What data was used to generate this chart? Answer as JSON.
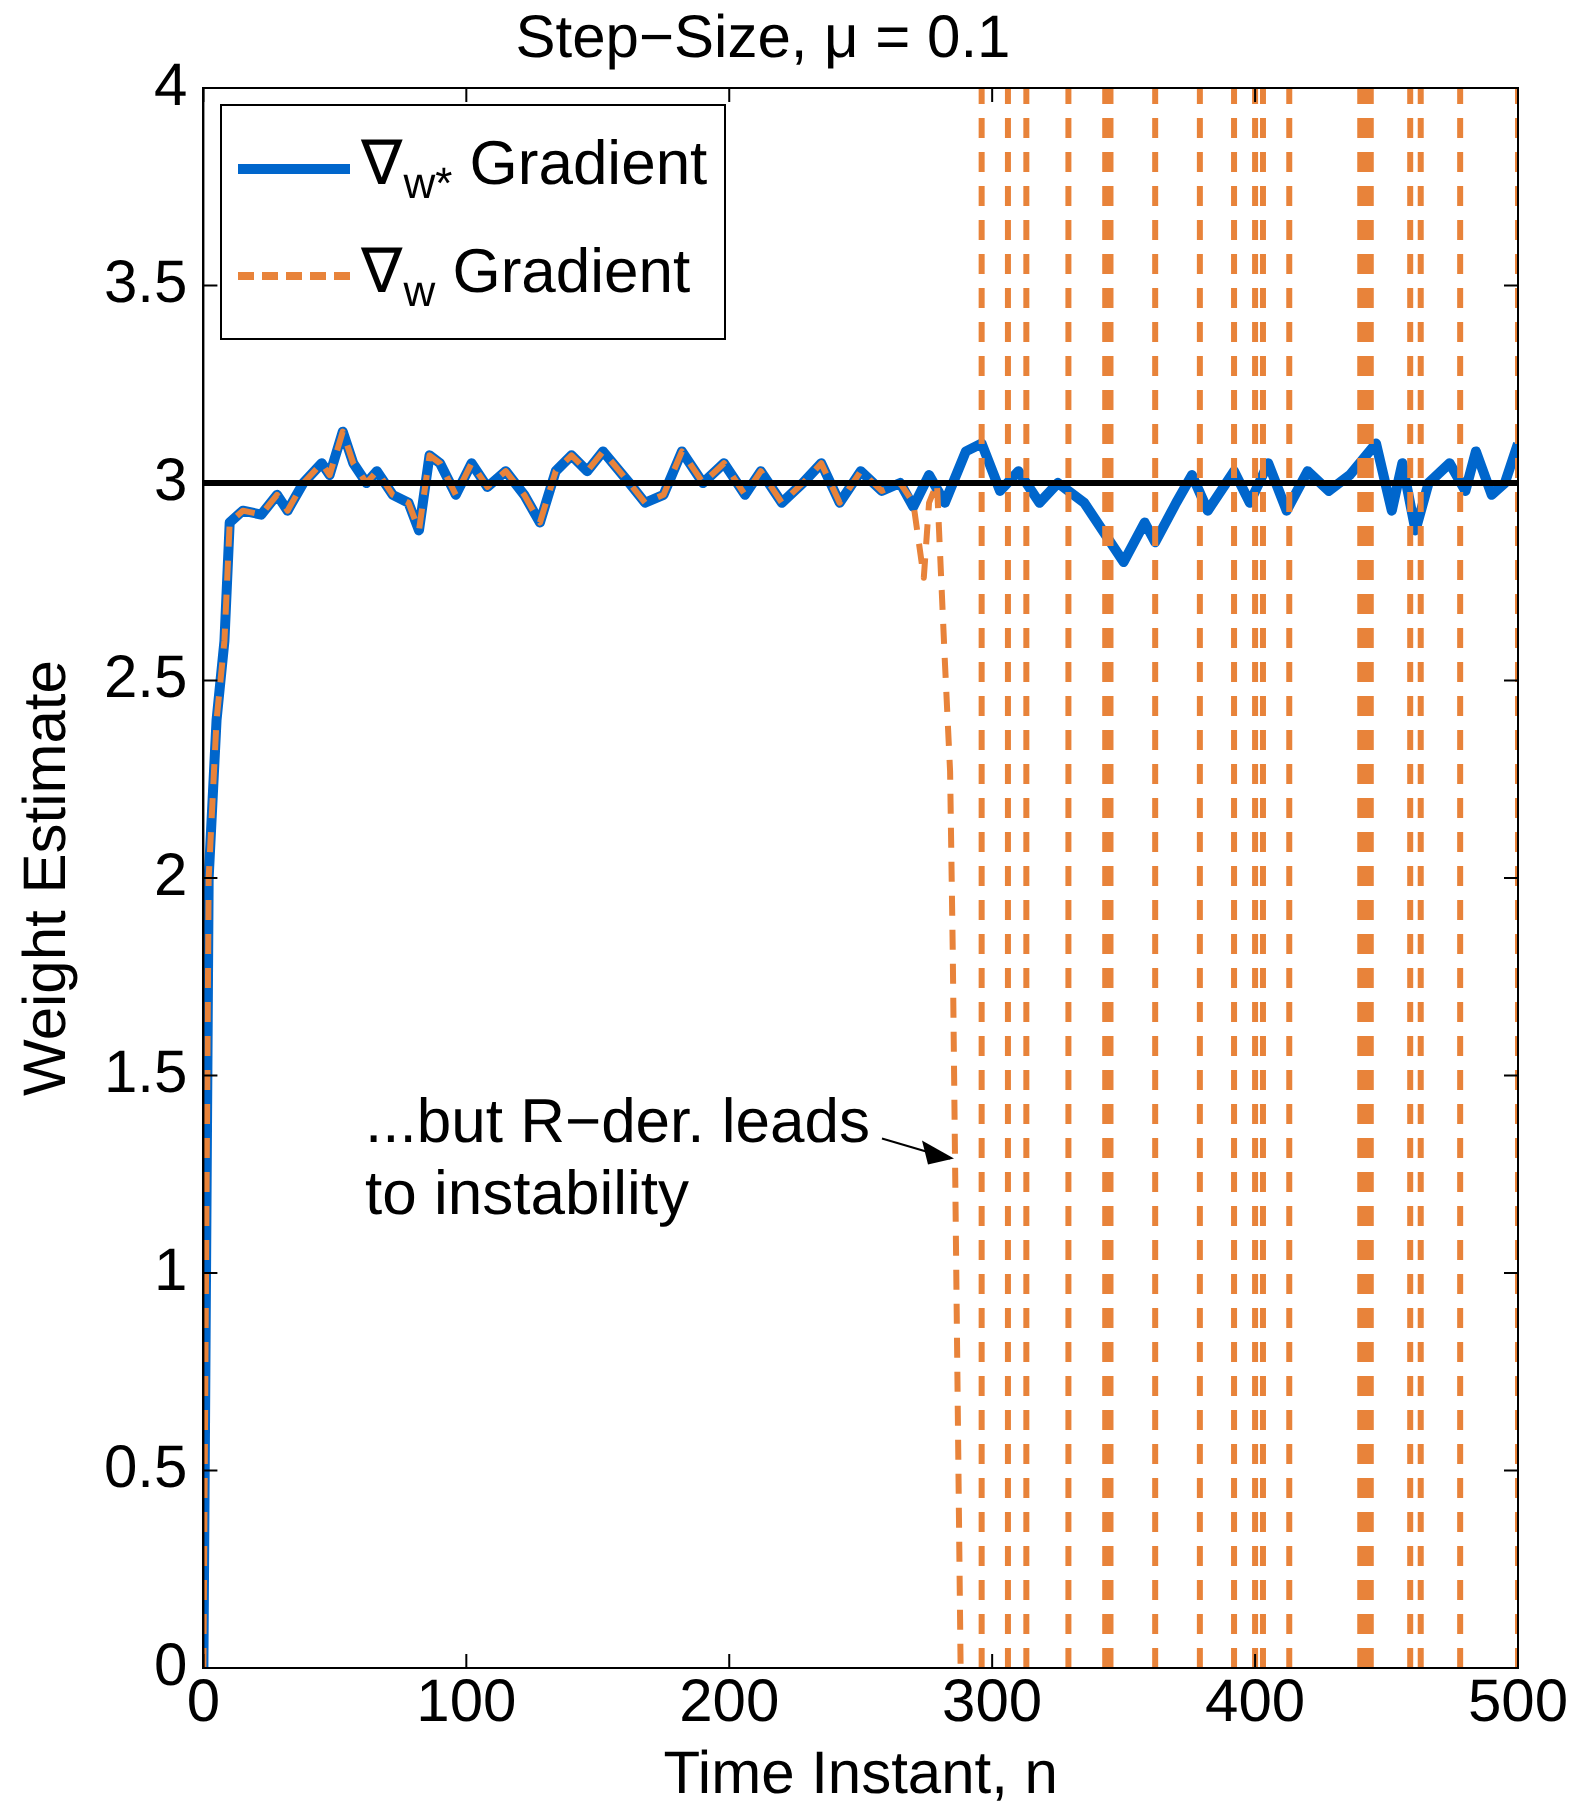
{
  "chart_data": {
    "type": "line",
    "title": "Step−Size, μ = 0.1",
    "xlabel": "Time Instant, n",
    "ylabel": "Weight Estimate",
    "xlim": [
      0,
      500
    ],
    "xticks": [
      0,
      100,
      200,
      300,
      400,
      500
    ],
    "ylim": [
      0,
      4
    ],
    "yticks": [
      0,
      0.5,
      1,
      1.5,
      2,
      2.5,
      3,
      3.5,
      4
    ],
    "legend": "top left",
    "grid": false,
    "ref_lines": [
      {
        "axis": "y",
        "value": 3,
        "color": "#000000"
      }
    ],
    "annotations": [
      {
        "text": "...but R−der. leads\nto instability",
        "x": 287,
        "y": 1.29
      }
    ],
    "series": [
      {
        "name": "∇$_{w*}$ Gradient",
        "color": "#0066cc",
        "line_style": "solid",
        "x": [
          0,
          2,
          5,
          8,
          10,
          15,
          22,
          28,
          32,
          38,
          45,
          48,
          53,
          57,
          62,
          66,
          72,
          78,
          82,
          86,
          90,
          96,
          102,
          108,
          115,
          122,
          128,
          134,
          140,
          146,
          152,
          162,
          168,
          175,
          182,
          190,
          198,
          206,
          212,
          220,
          228,
          235,
          242,
          250,
          258,
          265,
          270,
          276,
          282,
          290,
          296,
          303,
          310,
          318,
          325,
          335,
          345,
          350,
          358,
          362,
          370,
          376,
          382,
          392,
          398,
          405,
          412,
          420,
          428,
          436,
          446,
          452,
          456,
          461,
          466,
          474,
          480,
          484,
          490,
          495,
          500
        ],
        "values": [
          0,
          2,
          2.4,
          2.6,
          2.9,
          2.93,
          2.92,
          2.97,
          2.93,
          3,
          3.05,
          3.02,
          3.13,
          3.05,
          3,
          3.03,
          2.97,
          2.95,
          2.88,
          3.07,
          3.05,
          2.97,
          3.05,
          2.99,
          3.03,
          2.97,
          2.9,
          3.03,
          3.07,
          3.03,
          3.08,
          3,
          2.95,
          2.97,
          3.08,
          3,
          3.05,
          2.97,
          3.03,
          2.95,
          3,
          3.05,
          2.95,
          3.03,
          2.98,
          3,
          2.94,
          3.02,
          2.95,
          3.08,
          3.1,
          2.98,
          3.03,
          2.95,
          3,
          2.95,
          2.85,
          2.8,
          2.9,
          2.85,
          2.95,
          3.02,
          2.93,
          3.03,
          2.95,
          3.05,
          2.93,
          3.03,
          2.98,
          3.02,
          3.1,
          2.93,
          3.05,
          2.88,
          3,
          3.05,
          2.98,
          3.08,
          2.97,
          3,
          3.1
        ]
      },
      {
        "name": "∇$_{w}$ Gradient",
        "color": "#e8833a",
        "line_style": "dashed",
        "x": [
          0,
          2,
          5,
          8,
          10,
          15,
          22,
          28,
          32,
          38,
          45,
          48,
          53,
          57,
          62,
          66,
          72,
          78,
          82,
          86,
          90,
          96,
          102,
          108,
          115,
          122,
          128,
          134,
          140,
          146,
          152,
          162,
          168,
          175,
          182,
          190,
          198,
          206,
          212,
          220,
          228,
          235,
          242,
          250,
          258,
          265,
          270,
          274,
          276,
          279,
          282,
          284,
          285,
          288,
          290,
          296,
          296,
          300,
          306,
          306,
          309,
          313,
          313,
          320,
          329,
          329,
          335,
          343,
          343,
          344,
          345,
          345,
          350,
          362,
          362,
          370,
          379,
          379,
          385,
          392,
          392,
          396,
          400,
          400,
          401,
          403,
          403,
          408,
          413,
          413,
          420,
          440,
          440,
          441,
          442,
          442,
          443,
          444,
          444,
          450,
          459,
          459,
          461,
          463,
          463,
          470,
          478,
          478,
          490,
          500,
          500
        ],
        "values": [
          0,
          2,
          2.4,
          2.6,
          2.9,
          2.93,
          2.92,
          2.97,
          2.93,
          3,
          3.05,
          3.02,
          3.13,
          3.05,
          3,
          3.03,
          2.97,
          2.95,
          2.88,
          3.07,
          3.05,
          2.97,
          3.05,
          2.99,
          3.03,
          2.97,
          2.9,
          3.03,
          3.07,
          3.03,
          3.08,
          3,
          2.95,
          2.97,
          3.08,
          3,
          3.05,
          2.97,
          3.03,
          2.95,
          3,
          3.05,
          2.95,
          3.03,
          2.98,
          3,
          2.95,
          2.76,
          2.95,
          3,
          2.55,
          2.27,
          1.82,
          0,
          null,
          0,
          4,
          null,
          0,
          4,
          null,
          0,
          4,
          null,
          0,
          4,
          null,
          0,
          4,
          null,
          0,
          4,
          null,
          0,
          4,
          null,
          0,
          4,
          null,
          0,
          4,
          null,
          0,
          4,
          null,
          0,
          4,
          null,
          0,
          4,
          null,
          0,
          4,
          null,
          0,
          4,
          null,
          0,
          4,
          null,
          0,
          4,
          null,
          0,
          4,
          null,
          0,
          4,
          null,
          0,
          4
        ]
      }
    ]
  }
}
